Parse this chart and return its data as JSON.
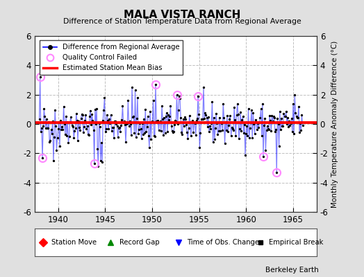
{
  "title": "MALA VISTA RANCH",
  "subtitle": "Difference of Station Temperature Data from Regional Average",
  "ylabel": "Monthly Temperature Anomaly Difference (°C)",
  "xlim": [
    1937.5,
    1967.5
  ],
  "ylim": [
    -6,
    6
  ],
  "yticks": [
    -6,
    -4,
    -2,
    0,
    2,
    4,
    6
  ],
  "xticks": [
    1940,
    1945,
    1950,
    1955,
    1960,
    1965
  ],
  "bias_value": 0.1,
  "background_color": "#e0e0e0",
  "plot_bg_color": "#ffffff",
  "line_color": "#0000ff",
  "line_alpha": 0.5,
  "bias_color": "#ff0000",
  "qc_color": "#ff88ff",
  "seed": 42,
  "n_points": 336,
  "start_year": 1938.0,
  "end_year": 1966.0
}
